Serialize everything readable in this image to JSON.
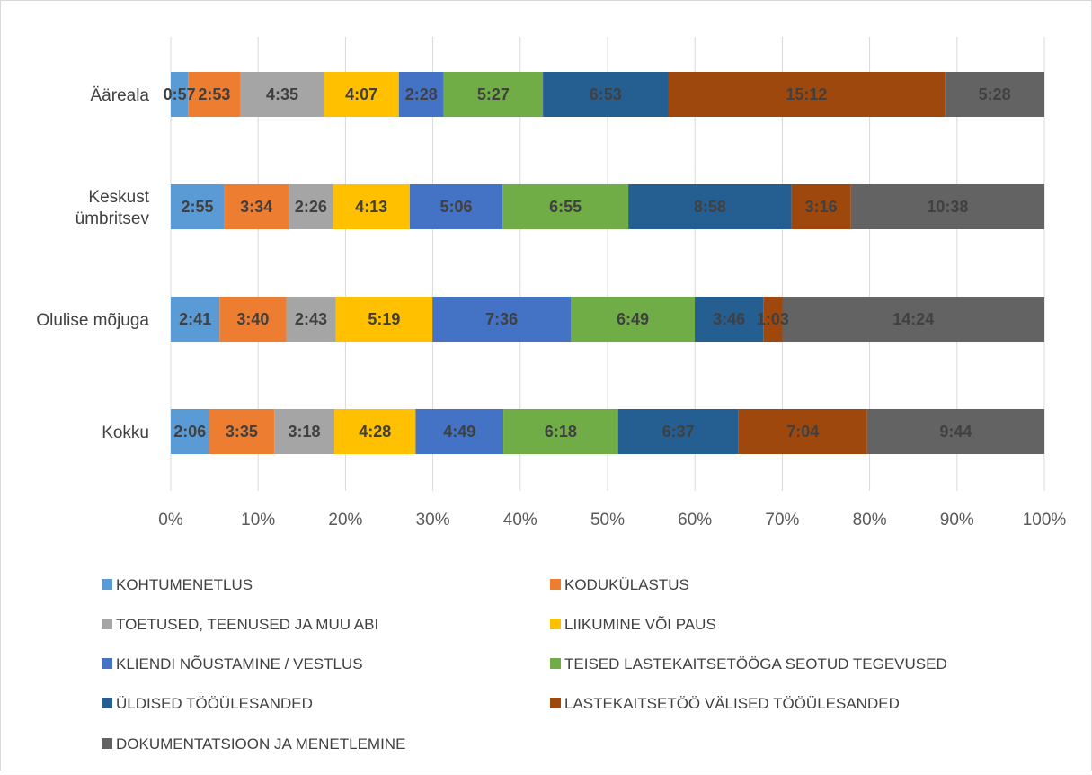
{
  "chart_data": {
    "type": "bar",
    "orientation": "horizontal",
    "stacked": "percent",
    "title": "",
    "xlabel": "",
    "ylabel": "",
    "xlim": [
      0,
      100
    ],
    "x_ticks": [
      "0%",
      "10%",
      "20%",
      "30%",
      "40%",
      "50%",
      "60%",
      "70%",
      "80%",
      "90%",
      "100%"
    ],
    "grid": "vertical",
    "legend_position": "bottom",
    "categories": [
      {
        "lines": [
          "Ääreala"
        ]
      },
      {
        "lines": [
          "Keskust",
          "ümbritsev"
        ]
      },
      {
        "lines": [
          "Olulise mõjuga"
        ]
      },
      {
        "lines": [
          "Kokku"
        ]
      }
    ],
    "series": [
      {
        "name": "KOHTUMENETLUS",
        "color": "#5b9bd5",
        "values": [
          "0:57",
          "2:55",
          "2:41",
          "2:06"
        ]
      },
      {
        "name": "KODUKÜLASTUS",
        "color": "#ed7d31",
        "values": [
          "2:53",
          "3:34",
          "3:40",
          "3:35"
        ]
      },
      {
        "name": "TOETUSED, TEENUSED JA MUU ABI",
        "color": "#a5a5a5",
        "values": [
          "4:35",
          "2:26",
          "2:43",
          "3:18"
        ]
      },
      {
        "name": "LIIKUMINE VÕI PAUS",
        "color": "#ffc000",
        "values": [
          "4:07",
          "4:13",
          "5:19",
          "4:28"
        ]
      },
      {
        "name": "KLIENDI NÕUSTAMINE / VESTLUS",
        "color": "#4472c4",
        "values": [
          "2:28",
          "5:06",
          "7:36",
          "4:49"
        ]
      },
      {
        "name": "TEISED LASTEKAITSETÖÖGA SEOTUD TEGEVUSED",
        "color": "#70ad47",
        "values": [
          "5:27",
          "6:55",
          "6:49",
          "6:18"
        ]
      },
      {
        "name": "ÜLDISED TÖÖÜLESANDED",
        "color": "#255e91",
        "values": [
          "6:53",
          "8:58",
          "3:46",
          "6:37"
        ]
      },
      {
        "name": "LASTEKAITSETÖÖ VÄLISED TÖÖÜLESANDED",
        "color": "#9e480e",
        "values": [
          "15:12",
          "3:16",
          "1:03",
          "7:04"
        ]
      },
      {
        "name": "DOKUMENTATSIOON JA MENETLEMINE",
        "color": "#636363",
        "values": [
          "5:28",
          "10:38",
          "14:24",
          "9:44"
        ]
      }
    ]
  }
}
